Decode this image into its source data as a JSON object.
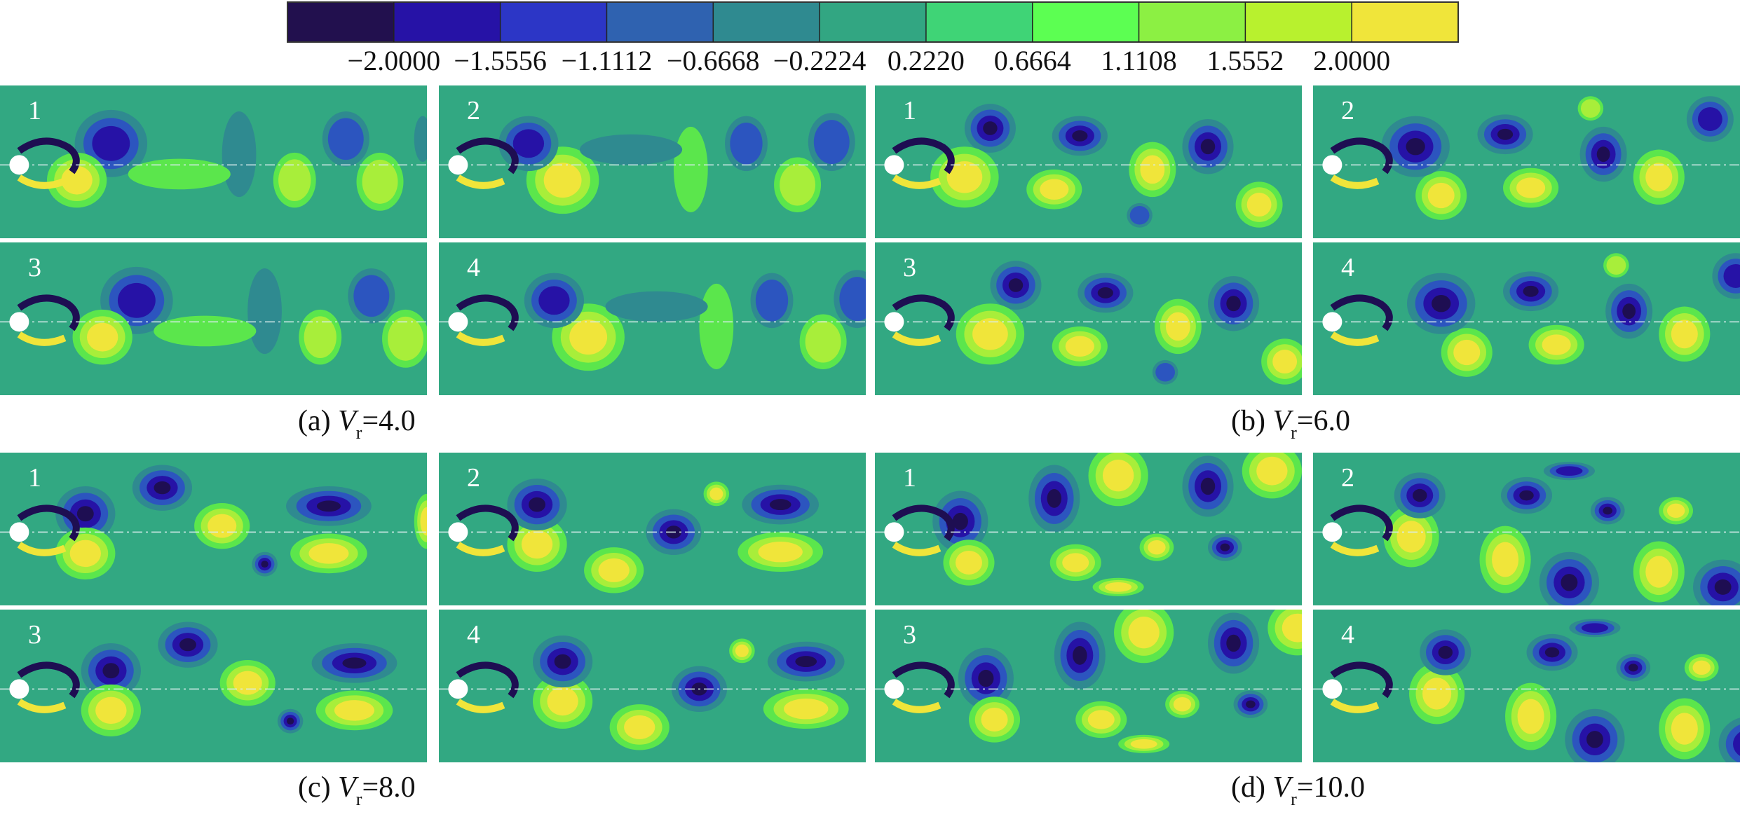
{
  "colorbar": {
    "ticks": [
      "−2.0000",
      "−1.5556",
      "−1.1112",
      "−0.6668",
      "−0.2224",
      "0.2220",
      "0.6664",
      "1.1108",
      "1.5552",
      "2.0000"
    ],
    "colors": [
      "#22104e",
      "#2612a6",
      "#2c36c6",
      "#2f62b0",
      "#2f8a90",
      "#32a682",
      "#3fd476",
      "#5cff52",
      "#8cf043",
      "#b8f12e",
      "#f0e53a"
    ]
  },
  "field_colors": {
    "background": "#32a882",
    "weak_negative": "#2f8a90",
    "mid_negative": "#2c55bf",
    "strong_negative": "#2612a6",
    "core_negative": "#1e0e52",
    "weak_positive": "#5be64c",
    "mid_positive": "#a8ee3a",
    "strong_positive": "#f0e53a",
    "cylinder": "#ffffff"
  },
  "groups": [
    {
      "caption_prefix": "(a) ",
      "symbol": "V",
      "subscript": "r",
      "caption_value": "=4.0",
      "frames": [
        "1",
        "2",
        "3",
        "4"
      ]
    },
    {
      "caption_prefix": "(b) ",
      "symbol": "V",
      "subscript": "r",
      "caption_value": "=6.0",
      "frames": [
        "1",
        "2",
        "3",
        "4"
      ]
    },
    {
      "caption_prefix": "(c) ",
      "symbol": "V",
      "subscript": "r",
      "caption_value": "=8.0",
      "frames": [
        "1",
        "2",
        "3",
        "4"
      ]
    },
    {
      "caption_prefix": "(d) ",
      "symbol": "V",
      "subscript": "r",
      "caption_value": "=10.0",
      "frames": [
        "1",
        "2",
        "3",
        "4"
      ]
    }
  ]
}
